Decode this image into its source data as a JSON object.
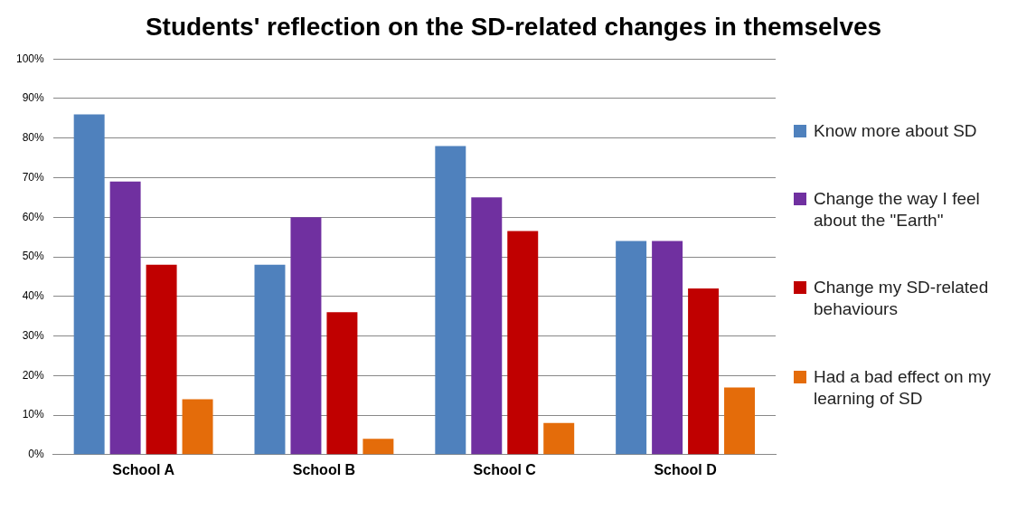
{
  "chart_data": {
    "type": "bar",
    "title": "Students' reflection on the SD-related changes in themselves",
    "categories": [
      "School A",
      "School B",
      "School C",
      "School D"
    ],
    "series": [
      {
        "name": "Know more about SD",
        "color": "#4f81bd",
        "values": [
          86,
          48,
          78,
          54
        ]
      },
      {
        "name": "Change the way I feel about the \"Earth\"",
        "color": "#7030a0",
        "values": [
          69,
          60,
          65,
          54
        ]
      },
      {
        "name": "Change my SD-related behaviours",
        "color": "#c00000",
        "values": [
          48,
          36,
          56.5,
          42
        ]
      },
      {
        "name": "Had a bad effect on my learning of SD",
        "color": "#e46c0a",
        "values": [
          14,
          4,
          8,
          17
        ]
      }
    ],
    "ylim": [
      0,
      100
    ],
    "yticks": [
      {
        "value": 0,
        "label": "0%"
      },
      {
        "value": 10,
        "label": "10%"
      },
      {
        "value": 20,
        "label": "20%"
      },
      {
        "value": 30,
        "label": "30%"
      },
      {
        "value": 40,
        "label": "40%"
      },
      {
        "value": 50,
        "label": "50%"
      },
      {
        "value": 60,
        "label": "60%"
      },
      {
        "value": 70,
        "label": "70%"
      },
      {
        "value": 80,
        "label": "80%"
      },
      {
        "value": 90,
        "label": "90%"
      },
      {
        "value": 100,
        "label": "100%"
      }
    ],
    "grid": "y",
    "legend": "right"
  }
}
